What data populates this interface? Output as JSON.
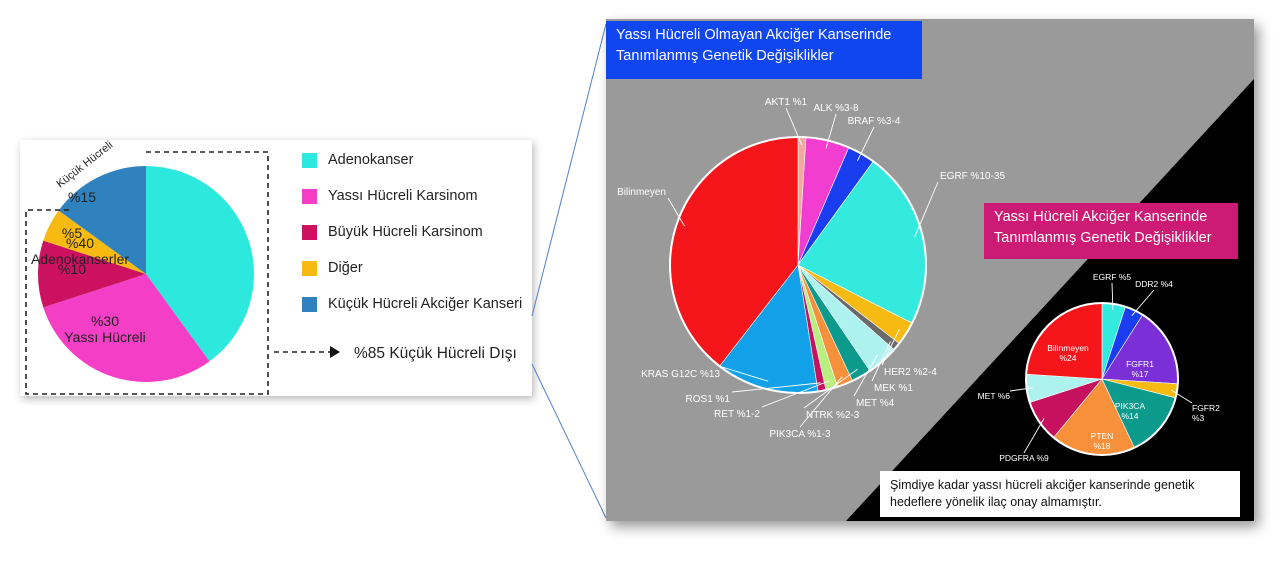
{
  "left_chart": {
    "side_label": "Küçük Hücreli",
    "legend": [
      {
        "label": "Adenokanser",
        "color": "#2de8dc"
      },
      {
        "label": "Yassı Hücreli Karsinom",
        "color": "#f43ec6"
      },
      {
        "label": "Büyük Hücreli Karsinom",
        "color": "#cb1160"
      },
      {
        "label": "Diğer",
        "color": "#f7ba13"
      },
      {
        "label": "Küçük Hücreli Akciğer Kanseri",
        "color": "#2f82bd"
      }
    ],
    "arrow_label": "%85 Küçük Hücreli Dışı"
  },
  "nsclc_title": "Yassı Hücreli Olmayan Akciğer Kanserinde Tanımlanmış Genetik Değişiklikler",
  "squamous_title": "Yassı Hücreli Akciğer Kanserinde Tanımlanmış Genetik Değişiklikler",
  "note": "Şimdiye kadar yassı hücreli akciğer kanserinde genetik hedeflere yönelik ilaç onay almamıştır.",
  "chart_data": [
    {
      "type": "pie",
      "title": "",
      "slices": [
        {
          "value": 40,
          "color": "#2de8dc",
          "labels": [
            "%40",
            "Adenokanserler"
          ]
        },
        {
          "value": 30,
          "color": "#f43ec6",
          "labels": [
            "%30",
            "Yassı Hücreli"
          ]
        },
        {
          "value": 10,
          "color": "#cb1160",
          "labels": [
            "%10"
          ]
        },
        {
          "value": 5,
          "color": "#f7ba13",
          "labels": [
            "%5"
          ]
        },
        {
          "value": 15,
          "color": "#2f82bd",
          "labels": [
            "%15"
          ]
        }
      ]
    },
    {
      "type": "pie",
      "title": "Yassı Hücreli Olmayan Akciğer Kanserinde Tanımlanmış Genetik Değişiklikler",
      "slices": [
        {
          "label": "AKT1 %1",
          "value": 1,
          "color": "#f4a9a0"
        },
        {
          "label": "ALK %3-8",
          "value": 5.5,
          "color": "#f13ed0"
        },
        {
          "label": "BRAF %3-4",
          "value": 3.5,
          "color": "#1a3df0"
        },
        {
          "label": "EGRF %10-35",
          "value": 22.5,
          "color": "#34eadf"
        },
        {
          "label": "HER2 %2-4",
          "value": 3,
          "color": "#f7ba13"
        },
        {
          "label": "MEK %1",
          "value": 1,
          "color": "#6a6a6a"
        },
        {
          "label": "MET %4",
          "value": 4,
          "color": "#aef2ef"
        },
        {
          "label": "NTRK %2-3",
          "value": 2.5,
          "color": "#0b9a8c"
        },
        {
          "label": "PIK3CA %1-3",
          "value": 2,
          "color": "#f6903a"
        },
        {
          "label": "RET %1-2",
          "value": 1.5,
          "color": "#b9ef7e"
        },
        {
          "label": "ROS1 %1",
          "value": 1,
          "color": "#c6125e"
        },
        {
          "label": "KRAS G12C %13",
          "value": 13,
          "color": "#12a1e8"
        },
        {
          "label": "Bilinmeyen",
          "value": 39.5,
          "color": "#f5161b"
        }
      ]
    },
    {
      "type": "pie",
      "title": "Yassı Hücreli Akciğer Kanserinde Tanımlanmış Genetik Değişiklikler",
      "slices": [
        {
          "label": "EGRF %5",
          "value": 5,
          "color": "#34eadf"
        },
        {
          "label": "DDR2 %4",
          "value": 4,
          "color": "#1a3df0"
        },
        {
          "label": "FGFR1 %17",
          "value": 17,
          "color": "#7b2fd6"
        },
        {
          "label": "FGFR2 %3",
          "value": 3,
          "color": "#f7ba13"
        },
        {
          "label": "PIK3CA %14",
          "value": 14,
          "color": "#0b9a8c"
        },
        {
          "label": "PTEN %18",
          "value": 18,
          "color": "#f6903a"
        },
        {
          "label": "PDGFRA %9",
          "value": 9,
          "color": "#c6125e"
        },
        {
          "label": "MET %6",
          "value": 6,
          "color": "#aef2ef"
        },
        {
          "label": "Bilinmeyen %24",
          "value": 24,
          "color": "#f5161b"
        }
      ]
    }
  ]
}
